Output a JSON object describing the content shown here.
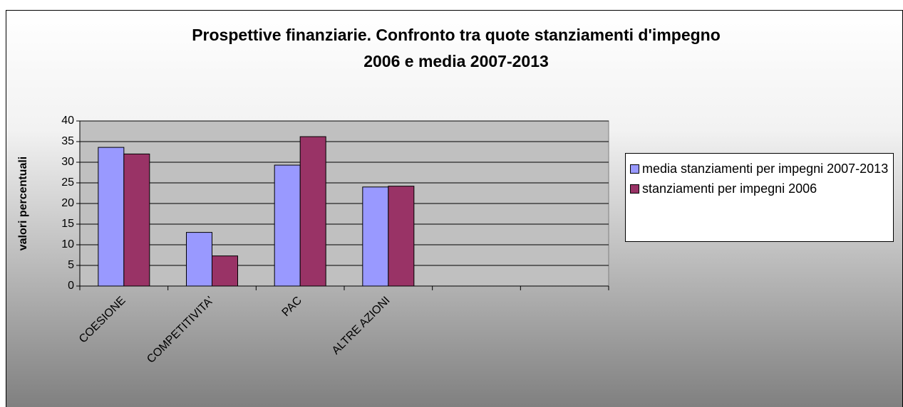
{
  "chart_data": {
    "type": "bar",
    "title": [
      "Prospettive finanziarie. Confronto tra quote stanziamenti d'impegno",
      "2006 e media 2007-2013"
    ],
    "y_label": "valori percentuali",
    "categories": [
      "COESIONE",
      "COMPETITIVITA'",
      "PAC",
      "ALTRE AZIONI",
      null,
      null
    ],
    "series": [
      {
        "name": "media stanziamenti per impegni 2007-2013",
        "color": "#9999ff",
        "values": [
          33.6,
          13.0,
          29.3,
          24.0,
          null,
          null
        ]
      },
      {
        "name": "stanziamenti per impegni 2006",
        "color": "#993366",
        "values": [
          32.0,
          7.3,
          36.2,
          24.2,
          null,
          null
        ]
      }
    ],
    "ylim": [
      0,
      40
    ],
    "yticks": [
      0,
      5,
      10,
      15,
      20,
      25,
      30,
      35,
      40
    ],
    "grid": true,
    "legend": "right"
  }
}
